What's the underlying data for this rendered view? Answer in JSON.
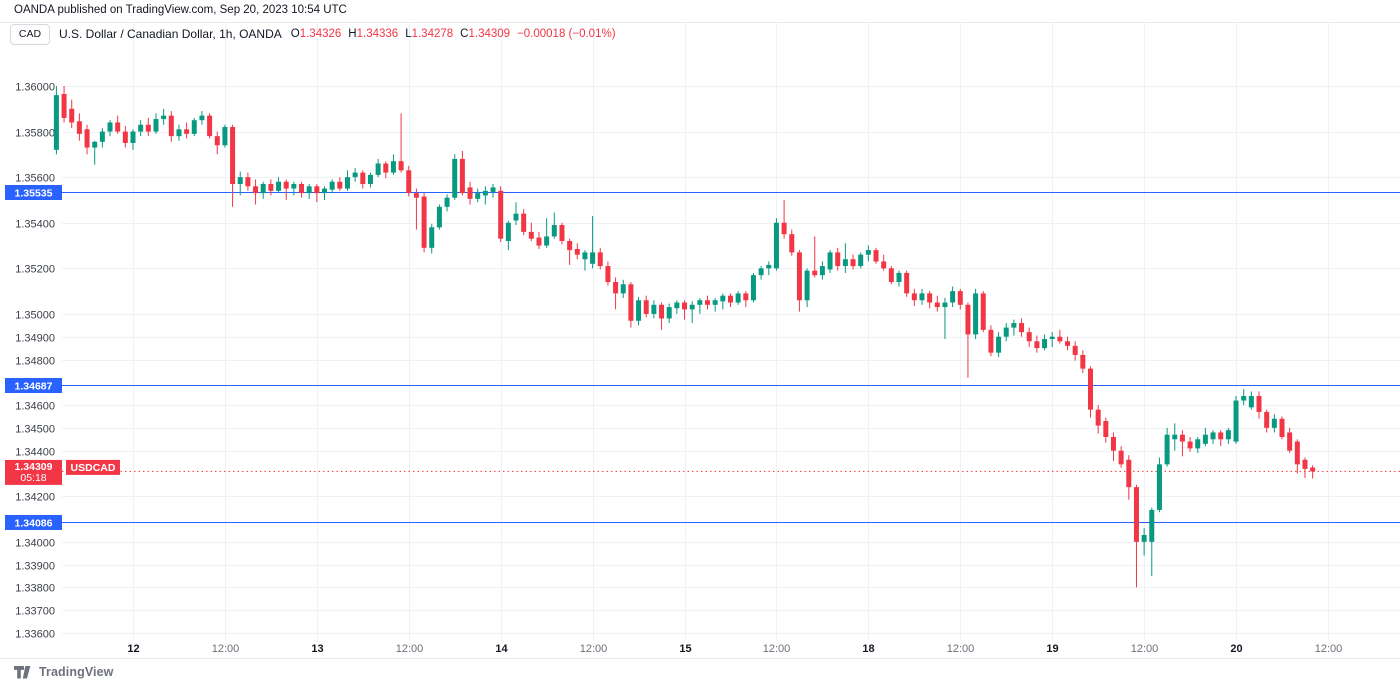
{
  "header": {
    "publish_line": "OANDA published on TradingView.com, Sep 20, 2023 10:54 UTC"
  },
  "symbol_bar": {
    "badge": "CAD",
    "title": "U.S. Dollar / Canadian Dollar, 1h, OANDA",
    "ohlc": {
      "open_label": "O",
      "open": "1.34326",
      "high_label": "H",
      "high": "1.34336",
      "low_label": "L",
      "low": "1.34278",
      "close_label": "C",
      "close": "1.34309",
      "change": "−0.00018 (−0.01%)"
    }
  },
  "footer": {
    "brand": "TradingView",
    "logo_icon": "tradingview-logo"
  },
  "chart_data": {
    "type": "candlestick",
    "symbol": "USDCAD",
    "exchange": "OANDA",
    "interval": "1h",
    "legend": "U.S. Dollar / Canadian Dollar, 1h, OANDA",
    "colors": {
      "up": "#089981",
      "down": "#F23645",
      "level": "#2962FF",
      "grid": "#eef1f6",
      "separator": "#e7eaf0",
      "price_text": "#3a3e47",
      "time_major": "#131722",
      "time_minor": "#6a6e79"
    },
    "y_axis": {
      "side": "left",
      "top_price": 1.36,
      "bottom_price": 1.3356,
      "labels": [
        {
          "price": 1.36,
          "text": "1.36000"
        },
        {
          "price": 1.358,
          "text": "1.35800"
        },
        {
          "price": 1.356,
          "text": "1.35600"
        },
        {
          "price": 1.354,
          "text": "1.35400"
        },
        {
          "price": 1.352,
          "text": "1.35200"
        },
        {
          "price": 1.35,
          "text": "1.35000"
        },
        {
          "price": 1.349,
          "text": "1.34900"
        },
        {
          "price": 1.348,
          "text": "1.34800"
        },
        {
          "price": 1.346,
          "text": "1.34600"
        },
        {
          "price": 1.345,
          "text": "1.34500"
        },
        {
          "price": 1.344,
          "text": "1.34400"
        },
        {
          "price": 1.342,
          "text": "1.34200"
        },
        {
          "price": 1.34,
          "text": "1.34000"
        },
        {
          "price": 1.339,
          "text": "1.33900"
        },
        {
          "price": 1.338,
          "text": "1.33800"
        },
        {
          "price": 1.337,
          "text": "1.33700"
        },
        {
          "price": 1.336,
          "text": "1.33600"
        }
      ]
    },
    "x_axis": {
      "ticks": [
        {
          "index": 10,
          "text": "12",
          "major": true
        },
        {
          "index": 22,
          "text": "12:00",
          "major": false
        },
        {
          "index": 34,
          "text": "13",
          "major": true
        },
        {
          "index": 46,
          "text": "12:00",
          "major": false
        },
        {
          "index": 58,
          "text": "14",
          "major": true
        },
        {
          "index": 70,
          "text": "12:00",
          "major": false
        },
        {
          "index": 82,
          "text": "15",
          "major": true
        },
        {
          "index": 94,
          "text": "12:00",
          "major": false
        },
        {
          "index": 106,
          "text": "18",
          "major": true
        },
        {
          "index": 118,
          "text": "12:00",
          "major": false
        },
        {
          "index": 130,
          "text": "19",
          "major": true
        },
        {
          "index": 142,
          "text": "12:00",
          "major": false
        },
        {
          "index": 154,
          "text": "20",
          "major": true
        },
        {
          "index": 166,
          "text": "12:00",
          "major": false
        }
      ]
    },
    "levels": [
      {
        "price": 1.35535,
        "text": "1.35535"
      },
      {
        "price": 1.34687,
        "text": "1.34687"
      },
      {
        "price": 1.34086,
        "text": "1.34086"
      }
    ],
    "last_price": {
      "price": 1.34309,
      "text": "1.34309",
      "countdown": "05:18",
      "tag": "USDCAD"
    },
    "candles": [
      [
        1.3572,
        1.36,
        1.357,
        1.3596
      ],
      [
        1.35965,
        1.36,
        1.3584,
        1.3586
      ],
      [
        1.359,
        1.3594,
        1.35815,
        1.3584
      ],
      [
        1.35845,
        1.3588,
        1.3576,
        1.3579
      ],
      [
        1.3581,
        1.3583,
        1.357,
        1.3573
      ],
      [
        1.3573,
        1.3576,
        1.35655,
        1.35755
      ],
      [
        1.35755,
        1.35815,
        1.3573,
        1.358
      ],
      [
        1.358,
        1.3585,
        1.3578,
        1.3584
      ],
      [
        1.3584,
        1.3587,
        1.3579,
        1.358
      ],
      [
        1.358,
        1.35825,
        1.3573,
        1.3575
      ],
      [
        1.3575,
        1.3581,
        1.3572,
        1.358
      ],
      [
        1.358,
        1.3585,
        1.3578,
        1.3583
      ],
      [
        1.3583,
        1.3586,
        1.3578,
        1.358
      ],
      [
        1.358,
        1.3588,
        1.3579,
        1.35855
      ],
      [
        1.35855,
        1.359,
        1.3583,
        1.3587
      ],
      [
        1.3587,
        1.3589,
        1.35755,
        1.3578
      ],
      [
        1.3578,
        1.3583,
        1.3576,
        1.3581
      ],
      [
        1.3581,
        1.3584,
        1.3577,
        1.3579
      ],
      [
        1.3579,
        1.3586,
        1.3578,
        1.3585
      ],
      [
        1.3585,
        1.3589,
        1.3583,
        1.3587
      ],
      [
        1.3587,
        1.3588,
        1.3577,
        1.3578
      ],
      [
        1.3578,
        1.358,
        1.357,
        1.3574
      ],
      [
        1.3574,
        1.3583,
        1.3573,
        1.3582
      ],
      [
        1.3582,
        1.3583,
        1.3547,
        1.3557
      ],
      [
        1.3557,
        1.35625,
        1.3552,
        1.356
      ],
      [
        1.356,
        1.3562,
        1.3554,
        1.3556
      ],
      [
        1.3556,
        1.3559,
        1.3548,
        1.3553
      ],
      [
        1.3553,
        1.3558,
        1.35505,
        1.3557
      ],
      [
        1.3557,
        1.3559,
        1.3552,
        1.3554
      ],
      [
        1.3554,
        1.356,
        1.3553,
        1.3558
      ],
      [
        1.3558,
        1.3559,
        1.355,
        1.3555
      ],
      [
        1.3555,
        1.3558,
        1.3552,
        1.3557
      ],
      [
        1.3557,
        1.3558,
        1.3551,
        1.3553
      ],
      [
        1.3553,
        1.3557,
        1.35505,
        1.3556
      ],
      [
        1.3556,
        1.3557,
        1.3549,
        1.3553
      ],
      [
        1.3553,
        1.3556,
        1.355,
        1.3555
      ],
      [
        1.35545,
        1.3559,
        1.3553,
        1.3558
      ],
      [
        1.3558,
        1.356,
        1.3554,
        1.3555
      ],
      [
        1.3555,
        1.3563,
        1.3554,
        1.356
      ],
      [
        1.356,
        1.3564,
        1.3558,
        1.3562
      ],
      [
        1.3562,
        1.3563,
        1.3555,
        1.3557
      ],
      [
        1.3557,
        1.3562,
        1.35555,
        1.3561
      ],
      [
        1.3561,
        1.3568,
        1.356,
        1.3566
      ],
      [
        1.3566,
        1.3567,
        1.35595,
        1.3562
      ],
      [
        1.3562,
        1.357,
        1.3561,
        1.3567
      ],
      [
        1.3567,
        1.3588,
        1.3562,
        1.3563
      ],
      [
        1.3563,
        1.3565,
        1.35515,
        1.3553
      ],
      [
        1.3553,
        1.3555,
        1.3537,
        1.3551
      ],
      [
        1.35515,
        1.3553,
        1.3527,
        1.3529
      ],
      [
        1.3529,
        1.35395,
        1.35265,
        1.3538
      ],
      [
        1.3538,
        1.3548,
        1.3537,
        1.3547
      ],
      [
        1.3547,
        1.35525,
        1.3545,
        1.3551
      ],
      [
        1.3551,
        1.357,
        1.355,
        1.3568
      ],
      [
        1.3568,
        1.35715,
        1.3552,
        1.3553
      ],
      [
        1.35555,
        1.3558,
        1.3548,
        1.35505
      ],
      [
        1.35505,
        1.3555,
        1.3549,
        1.3553
      ],
      [
        1.3552,
        1.3556,
        1.3548,
        1.3554
      ],
      [
        1.35535,
        1.3557,
        1.3551,
        1.35555
      ],
      [
        1.3554,
        1.3556,
        1.35315,
        1.3533
      ],
      [
        1.3532,
        1.3541,
        1.3528,
        1.354
      ],
      [
        1.3541,
        1.3549,
        1.3539,
        1.3544
      ],
      [
        1.3544,
        1.3546,
        1.35345,
        1.3536
      ],
      [
        1.3536,
        1.354,
        1.3532,
        1.3533
      ],
      [
        1.35335,
        1.3536,
        1.35285,
        1.353
      ],
      [
        1.353,
        1.3542,
        1.3529,
        1.3534
      ],
      [
        1.3534,
        1.35445,
        1.3533,
        1.3539
      ],
      [
        1.3539,
        1.354,
        1.35305,
        1.3532
      ],
      [
        1.3532,
        1.3533,
        1.35215,
        1.3528
      ],
      [
        1.35285,
        1.3531,
        1.3524,
        1.3526
      ],
      [
        1.3524,
        1.3528,
        1.3519,
        1.3527
      ],
      [
        1.3522,
        1.3543,
        1.352,
        1.3527
      ],
      [
        1.3527,
        1.3529,
        1.35195,
        1.3521
      ],
      [
        1.3521,
        1.3523,
        1.35125,
        1.3514
      ],
      [
        1.3514,
        1.3516,
        1.3502,
        1.3509
      ],
      [
        1.3509,
        1.3515,
        1.3507,
        1.3513
      ],
      [
        1.3513,
        1.3514,
        1.3494,
        1.3497
      ],
      [
        1.3497,
        1.35075,
        1.3495,
        1.3506
      ],
      [
        1.3506,
        1.3508,
        1.34985,
        1.35
      ],
      [
        1.35,
        1.3506,
        1.3498,
        1.3504
      ],
      [
        1.3504,
        1.3505,
        1.3493,
        1.3498
      ],
      [
        1.3498,
        1.35045,
        1.3496,
        1.3503
      ],
      [
        1.35025,
        1.3506,
        1.35,
        1.3505
      ],
      [
        1.3505,
        1.3506,
        1.34975,
        1.3502
      ],
      [
        1.3502,
        1.35055,
        1.3496,
        1.3504
      ],
      [
        1.3504,
        1.3507,
        1.35,
        1.3506
      ],
      [
        1.3506,
        1.3508,
        1.3502,
        1.3504
      ],
      [
        1.3504,
        1.3507,
        1.3501,
        1.3506
      ],
      [
        1.35055,
        1.3509,
        1.3502,
        1.3508
      ],
      [
        1.3508,
        1.3509,
        1.3503,
        1.3505
      ],
      [
        1.3505,
        1.351,
        1.3504,
        1.3509
      ],
      [
        1.3509,
        1.351,
        1.3503,
        1.3506
      ],
      [
        1.3506,
        1.3518,
        1.3505,
        1.3517
      ],
      [
        1.3517,
        1.3521,
        1.3515,
        1.352
      ],
      [
        1.352,
        1.3523,
        1.3517,
        1.35215
      ],
      [
        1.352,
        1.3542,
        1.3519,
        1.354
      ],
      [
        1.354,
        1.355,
        1.3533,
        1.3535
      ],
      [
        1.3535,
        1.3537,
        1.35255,
        1.3527
      ],
      [
        1.3527,
        1.3528,
        1.3501,
        1.3506
      ],
      [
        1.3506,
        1.352,
        1.3503,
        1.3519
      ],
      [
        1.3519,
        1.3534,
        1.3516,
        1.3517
      ],
      [
        1.3517,
        1.3523,
        1.3515,
        1.3521
      ],
      [
        1.35195,
        1.3528,
        1.3518,
        1.3527
      ],
      [
        1.3527,
        1.3529,
        1.3519,
        1.3521
      ],
      [
        1.3521,
        1.3531,
        1.3518,
        1.3524
      ],
      [
        1.3524,
        1.3526,
        1.35195,
        1.3521
      ],
      [
        1.3521,
        1.3527,
        1.352,
        1.3526
      ],
      [
        1.3526,
        1.353,
        1.3523,
        1.3528
      ],
      [
        1.3528,
        1.3529,
        1.3522,
        1.3523
      ],
      [
        1.3523,
        1.3526,
        1.3519,
        1.352
      ],
      [
        1.352,
        1.3521,
        1.3513,
        1.3514
      ],
      [
        1.3514,
        1.3519,
        1.3512,
        1.3518
      ],
      [
        1.3518,
        1.3519,
        1.35075,
        1.3509
      ],
      [
        1.3509,
        1.3511,
        1.35035,
        1.3506
      ],
      [
        1.3506,
        1.3511,
        1.3504,
        1.3509
      ],
      [
        1.3509,
        1.351,
        1.35025,
        1.3505
      ],
      [
        1.3505,
        1.3508,
        1.3501,
        1.3503
      ],
      [
        1.3503,
        1.3507,
        1.3489,
        1.3505
      ],
      [
        1.3505,
        1.3512,
        1.3503,
        1.351
      ],
      [
        1.351,
        1.3511,
        1.3502,
        1.3504
      ],
      [
        1.3504,
        1.3505,
        1.3472,
        1.3491
      ],
      [
        1.3491,
        1.3511,
        1.3489,
        1.3509
      ],
      [
        1.3509,
        1.351,
        1.3492,
        1.3493
      ],
      [
        1.3493,
        1.3495,
        1.34815,
        1.3483
      ],
      [
        1.3483,
        1.3492,
        1.3481,
        1.349
      ],
      [
        1.349,
        1.3496,
        1.3488,
        1.3494
      ],
      [
        1.3494,
        1.34975,
        1.34905,
        1.3496
      ],
      [
        1.3496,
        1.3498,
        1.349,
        1.3492
      ],
      [
        1.3492,
        1.3494,
        1.34855,
        1.3488
      ],
      [
        1.3488,
        1.34905,
        1.3483,
        1.3485
      ],
      [
        1.3485,
        1.3491,
        1.3484,
        1.3489
      ],
      [
        1.3489,
        1.3492,
        1.34855,
        1.349
      ],
      [
        1.349,
        1.3493,
        1.3487,
        1.3488
      ],
      [
        1.3488,
        1.349,
        1.3484,
        1.3486
      ],
      [
        1.3486,
        1.3488,
        1.34795,
        1.3482
      ],
      [
        1.3482,
        1.3484,
        1.3474,
        1.3476
      ],
      [
        1.3476,
        1.3477,
        1.34545,
        1.3458
      ],
      [
        1.3458,
        1.346,
        1.34475,
        1.3451
      ],
      [
        1.3453,
        1.34545,
        1.34435,
        1.3446
      ],
      [
        1.3446,
        1.3448,
        1.34355,
        1.344
      ],
      [
        1.344,
        1.3442,
        1.34325,
        1.3434
      ],
      [
        1.3436,
        1.3438,
        1.34185,
        1.3424
      ],
      [
        1.3424,
        1.3425,
        1.338,
        1.34
      ],
      [
        1.34,
        1.3406,
        1.3394,
        1.3403
      ],
      [
        1.34,
        1.3415,
        1.3385,
        1.3414
      ],
      [
        1.3414,
        1.3437,
        1.3413,
        1.3434
      ],
      [
        1.3434,
        1.345,
        1.3433,
        1.3447
      ],
      [
        1.3445,
        1.3452,
        1.344,
        1.3447
      ],
      [
        1.3447,
        1.3449,
        1.34375,
        1.3444
      ],
      [
        1.3444,
        1.3446,
        1.34395,
        1.3441
      ],
      [
        1.3441,
        1.3446,
        1.3439,
        1.3445
      ],
      [
        1.3443,
        1.345,
        1.3442,
        1.3447
      ],
      [
        1.3445,
        1.3449,
        1.3443,
        1.3448
      ],
      [
        1.3448,
        1.3449,
        1.3442,
        1.3445
      ],
      [
        1.3445,
        1.345,
        1.3443,
        1.3449
      ],
      [
        1.3444,
        1.3464,
        1.3443,
        1.3462
      ],
      [
        1.3462,
        1.3467,
        1.346,
        1.3464
      ],
      [
        1.3459,
        1.3466,
        1.3458,
        1.3464
      ],
      [
        1.3464,
        1.3466,
        1.3454,
        1.3457
      ],
      [
        1.3457,
        1.3458,
        1.3448,
        1.345
      ],
      [
        1.345,
        1.3456,
        1.3448,
        1.3454
      ],
      [
        1.3454,
        1.3455,
        1.3445,
        1.3446
      ],
      [
        1.3448,
        1.345,
        1.3439,
        1.344
      ],
      [
        1.3444,
        1.3445,
        1.343,
        1.3434
      ],
      [
        1.3436,
        1.3437,
        1.3428,
        1.3432
      ],
      [
        1.34326,
        1.34336,
        1.34278,
        1.34309
      ]
    ]
  }
}
